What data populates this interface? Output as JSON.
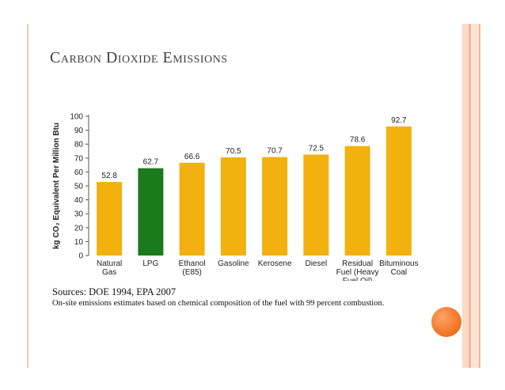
{
  "slide": {
    "title": "Carbon Dioxide Emissions",
    "sources": "Sources: DOE 1994, EPA 2007",
    "note": "On-site emissions estimates based on chemical composition of the fuel with 99 percent combustion."
  },
  "colors": {
    "bar_default": "#f2b10f",
    "bar_highlight": "#1b7a1b",
    "accent_orange": "#f47a2c",
    "band_peach": "#f9d9c8"
  },
  "chart_data": {
    "type": "bar",
    "categories": [
      [
        "Natural",
        "Gas"
      ],
      [
        "LPG"
      ],
      [
        "Ethanol",
        "(E85)"
      ],
      [
        "Gasoline"
      ],
      [
        "Kerosene"
      ],
      [
        "Diesel"
      ],
      [
        "Residual",
        "Fuel (Heavy",
        "Fuel Oil)"
      ],
      [
        "Bituminous",
        "Coal"
      ]
    ],
    "values": [
      52.8,
      62.7,
      66.6,
      70.5,
      70.7,
      72.5,
      78.6,
      92.7
    ],
    "value_labels": [
      "52.8",
      "62.7",
      "66.6",
      "70.5",
      "70.7",
      "72.5",
      "78.6",
      "92.7"
    ],
    "highlight_index": 1,
    "title": "",
    "xlabel": "",
    "ylabel": "kg CO₂ Equivalent Per Million Btu",
    "ylim": [
      0,
      100
    ],
    "yticks": [
      0,
      10,
      20,
      30,
      40,
      50,
      60,
      70,
      80,
      90,
      100
    ],
    "grid": false,
    "legend": "none"
  }
}
